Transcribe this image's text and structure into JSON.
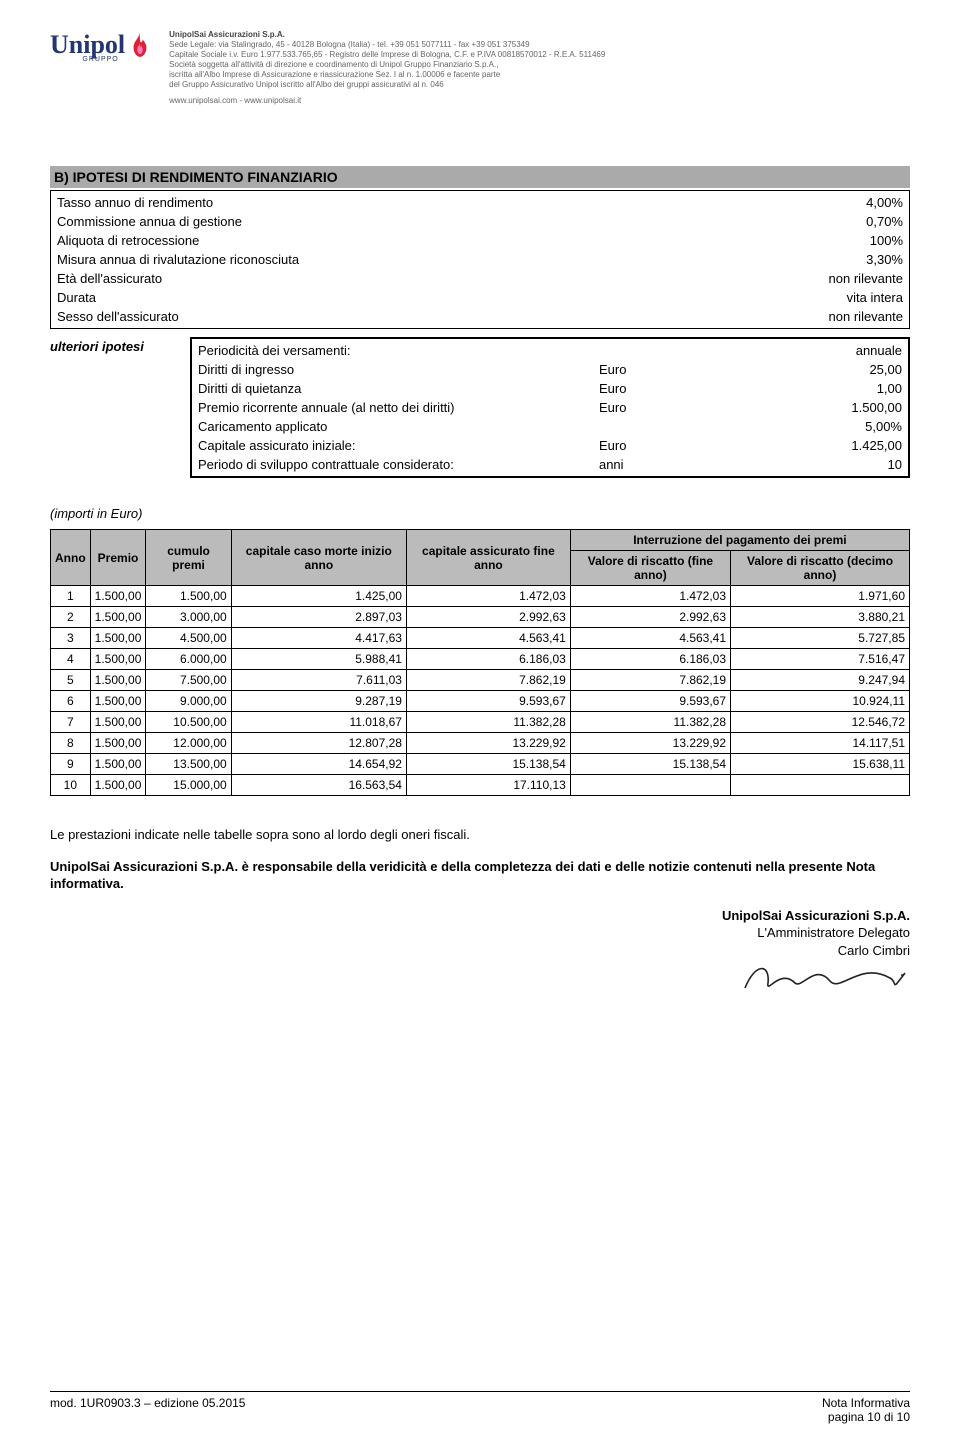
{
  "header": {
    "company": "UnipolSai Assicurazioni S.p.A.",
    "line1": "Sede Legale: via Stalingrado, 45 - 40128 Bologna (Italia) - tel. +39 051 5077111 - fax +39 051 375349",
    "line2": "Capitale Sociale i.v. Euro 1.977.533.765,65 - Registro delle Imprese di Bologna, C.F. e P.IVA 00818570012 - R.E.A. 511469",
    "line3": "Società soggetta all'attività di direzione e coordinamento di Unipol Gruppo Finanziario S.p.A.,",
    "line4": "iscritta all'Albo Imprese di Assicurazione e riassicurazione Sez. I al n. 1.00006 e facente parte",
    "line5": "del Gruppo Assicurativo Unipol iscritto all'Albo dei gruppi assicurativi al n. 046",
    "sites": "www.unipolsai.com - www.unipolsai.it",
    "logo_text": "Unipol",
    "logo_sub": "GRUPPO"
  },
  "sectionB": {
    "title": "B)  IPOTESI DI RENDIMENTO FINANZIARIO",
    "rows": [
      {
        "label": "Tasso annuo di rendimento",
        "val": "4,00%"
      },
      {
        "label": "Commissione annua di gestione",
        "val": "0,70%"
      },
      {
        "label": "Aliquota di retrocessione",
        "val": "100%"
      },
      {
        "label": "Misura annua di rivalutazione riconosciuta",
        "val": "3,30%"
      },
      {
        "label": "Età dell'assicurato",
        "val": "non rilevante"
      },
      {
        "label": "Durata",
        "val": "vita intera"
      },
      {
        "label": "Sesso dell'assicurato",
        "val": "non rilevante"
      }
    ]
  },
  "ulteriori": {
    "label": "ulteriori ipotesi",
    "rows": [
      {
        "label": "Periodicità dei versamenti:",
        "mid": "",
        "val": "annuale"
      },
      {
        "label": "Diritti di ingresso",
        "mid": "Euro",
        "val": "25,00"
      },
      {
        "label": "Diritti di quietanza",
        "mid": "Euro",
        "val": "1,00"
      },
      {
        "label": "Premio ricorrente annuale (al netto dei diritti)",
        "mid": "Euro",
        "val": "1.500,00"
      },
      {
        "label": "Caricamento applicato",
        "mid": "",
        "val": "5,00%"
      },
      {
        "label": "Capitale assicurato iniziale:",
        "mid": "Euro",
        "val": "1.425,00"
      },
      {
        "label": "Periodo di sviluppo contrattuale considerato:",
        "mid": "anni",
        "val": "10"
      }
    ]
  },
  "importi_label": "(importi in Euro)",
  "table": {
    "headers": {
      "anno": "Anno",
      "premio": "Premio",
      "cumulo": "cumulo premi",
      "cap_morte": "capitale caso morte inizio anno",
      "cap_assic": "capitale assicurato fine anno",
      "interr": "Interruzione del pagamento dei premi",
      "risc_fine": "Valore di riscatto (fine anno)",
      "risc_dec": "Valore di riscatto (decimo anno)"
    },
    "rows": [
      {
        "anno": "1",
        "premio": "1.500,00",
        "cumulo": "1.500,00",
        "cm": "1.425,00",
        "ca": "1.472,03",
        "rf": "1.472,03",
        "rd": "1.971,60"
      },
      {
        "anno": "2",
        "premio": "1.500,00",
        "cumulo": "3.000,00",
        "cm": "2.897,03",
        "ca": "2.992,63",
        "rf": "2.992,63",
        "rd": "3.880,21"
      },
      {
        "anno": "3",
        "premio": "1.500,00",
        "cumulo": "4.500,00",
        "cm": "4.417,63",
        "ca": "4.563,41",
        "rf": "4.563,41",
        "rd": "5.727,85"
      },
      {
        "anno": "4",
        "premio": "1.500,00",
        "cumulo": "6.000,00",
        "cm": "5.988,41",
        "ca": "6.186,03",
        "rf": "6.186,03",
        "rd": "7.516,47"
      },
      {
        "anno": "5",
        "premio": "1.500,00",
        "cumulo": "7.500,00",
        "cm": "7.611,03",
        "ca": "7.862,19",
        "rf": "7.862,19",
        "rd": "9.247,94"
      },
      {
        "anno": "6",
        "premio": "1.500,00",
        "cumulo": "9.000,00",
        "cm": "9.287,19",
        "ca": "9.593,67",
        "rf": "9.593,67",
        "rd": "10.924,11"
      },
      {
        "anno": "7",
        "premio": "1.500,00",
        "cumulo": "10.500,00",
        "cm": "11.018,67",
        "ca": "11.382,28",
        "rf": "11.382,28",
        "rd": "12.546,72"
      },
      {
        "anno": "8",
        "premio": "1.500,00",
        "cumulo": "12.000,00",
        "cm": "12.807,28",
        "ca": "13.229,92",
        "rf": "13.229,92",
        "rd": "14.117,51"
      },
      {
        "anno": "9",
        "premio": "1.500,00",
        "cumulo": "13.500,00",
        "cm": "14.654,92",
        "ca": "15.138,54",
        "rf": "15.138,54",
        "rd": "15.638,11"
      },
      {
        "anno": "10",
        "premio": "1.500,00",
        "cumulo": "15.000,00",
        "cm": "16.563,54",
        "ca": "17.110,13",
        "rf": "",
        "rd": ""
      }
    ]
  },
  "body": {
    "p1": "Le prestazioni indicate nelle tabelle sopra sono al lordo degli oneri fiscali.",
    "p2a": "UnipolSai Assicurazioni S.p.A. è responsabile della veridicità e della completezza dei dati e delle notizie contenuti nella presente Nota informativa.",
    "sign_company": "UnipolSai Assicurazioni S.p.A.",
    "sign_role": "L'Amministratore Delegato",
    "sign_name": "Carlo Cimbri"
  },
  "footer": {
    "left": "mod. 1UR0903.3 – edizione 05.2015",
    "right_top": "Nota Informativa",
    "right_bottom": "pagina 10 di 10"
  }
}
